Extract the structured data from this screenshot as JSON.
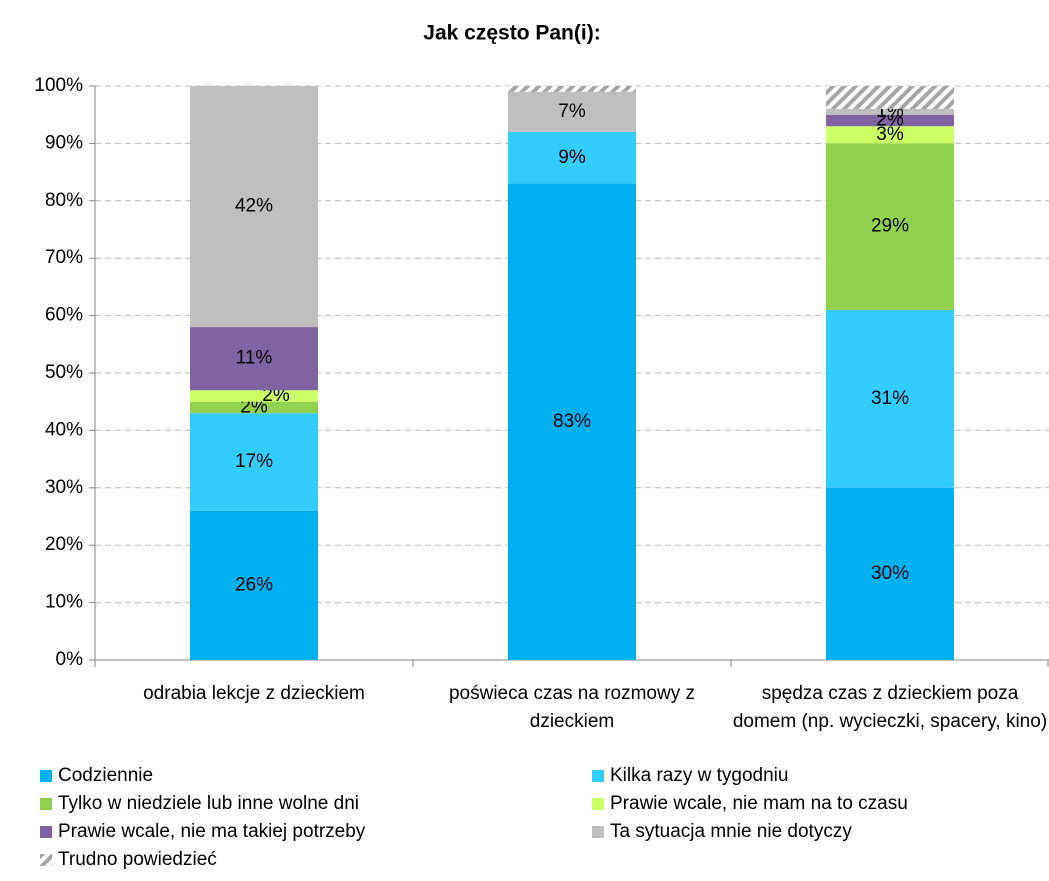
{
  "chart_data": {
    "type": "stacked_bar",
    "title": "Jak często Pan(i):",
    "categories": [
      "odrabia lekcje z dzieckiem",
      "poświeca czas na rozmowy z dzieckiem",
      "spędza czas z dzieckiem poza domem (np. wycieczki, spacery, kino)"
    ],
    "series": [
      {
        "name": "Codziennie",
        "color": "#00b0f0",
        "values": [
          26,
          83,
          30
        ],
        "value_labels": [
          "26%",
          "83%",
          "30%"
        ]
      },
      {
        "name": "Kilka razy w tygodniu",
        "color": "#33ccff",
        "values": [
          17,
          9,
          31
        ],
        "value_labels": [
          "17%",
          "9%",
          "31%"
        ]
      },
      {
        "name": "Tylko w niedziele lub inne wolne dni",
        "color": "#92d050",
        "values": [
          2,
          0,
          29
        ],
        "value_labels": [
          "2%",
          null,
          "29%"
        ]
      },
      {
        "name": "Prawie wcale, nie mam na to czasu",
        "color": "#ccff66",
        "values": [
          2,
          0,
          3
        ],
        "value_labels": [
          "2%",
          null,
          "3%"
        ]
      },
      {
        "name": "Prawie wcale, nie ma takiej potrzeby",
        "color": "#8064a2",
        "values": [
          11,
          0,
          2
        ],
        "value_labels": [
          "11%",
          null,
          "2%"
        ]
      },
      {
        "name": "Ta sytuacja mnie nie dotyczy",
        "color": "#bfbfbf",
        "values": [
          42,
          7,
          1
        ],
        "value_labels": [
          "42%",
          "7%",
          "1%"
        ]
      },
      {
        "name": "Trudno powiedzieć",
        "color": "#a6a6a6",
        "hatch": true,
        "values": [
          0,
          1,
          4
        ],
        "value_labels": [
          null,
          null,
          null
        ]
      }
    ],
    "ylim": [
      0,
      100
    ],
    "yticks": [
      {
        "value": 0,
        "label": "0%"
      },
      {
        "value": 10,
        "label": "10%"
      },
      {
        "value": 20,
        "label": "20%"
      },
      {
        "value": 30,
        "label": "30%"
      },
      {
        "value": 40,
        "label": "40%"
      },
      {
        "value": 50,
        "label": "50%"
      },
      {
        "value": 60,
        "label": "60%"
      },
      {
        "value": 70,
        "label": "70%"
      },
      {
        "value": 80,
        "label": "80%"
      },
      {
        "value": 90,
        "label": "90%"
      },
      {
        "value": 100,
        "label": "100%"
      }
    ],
    "grid": true
  }
}
